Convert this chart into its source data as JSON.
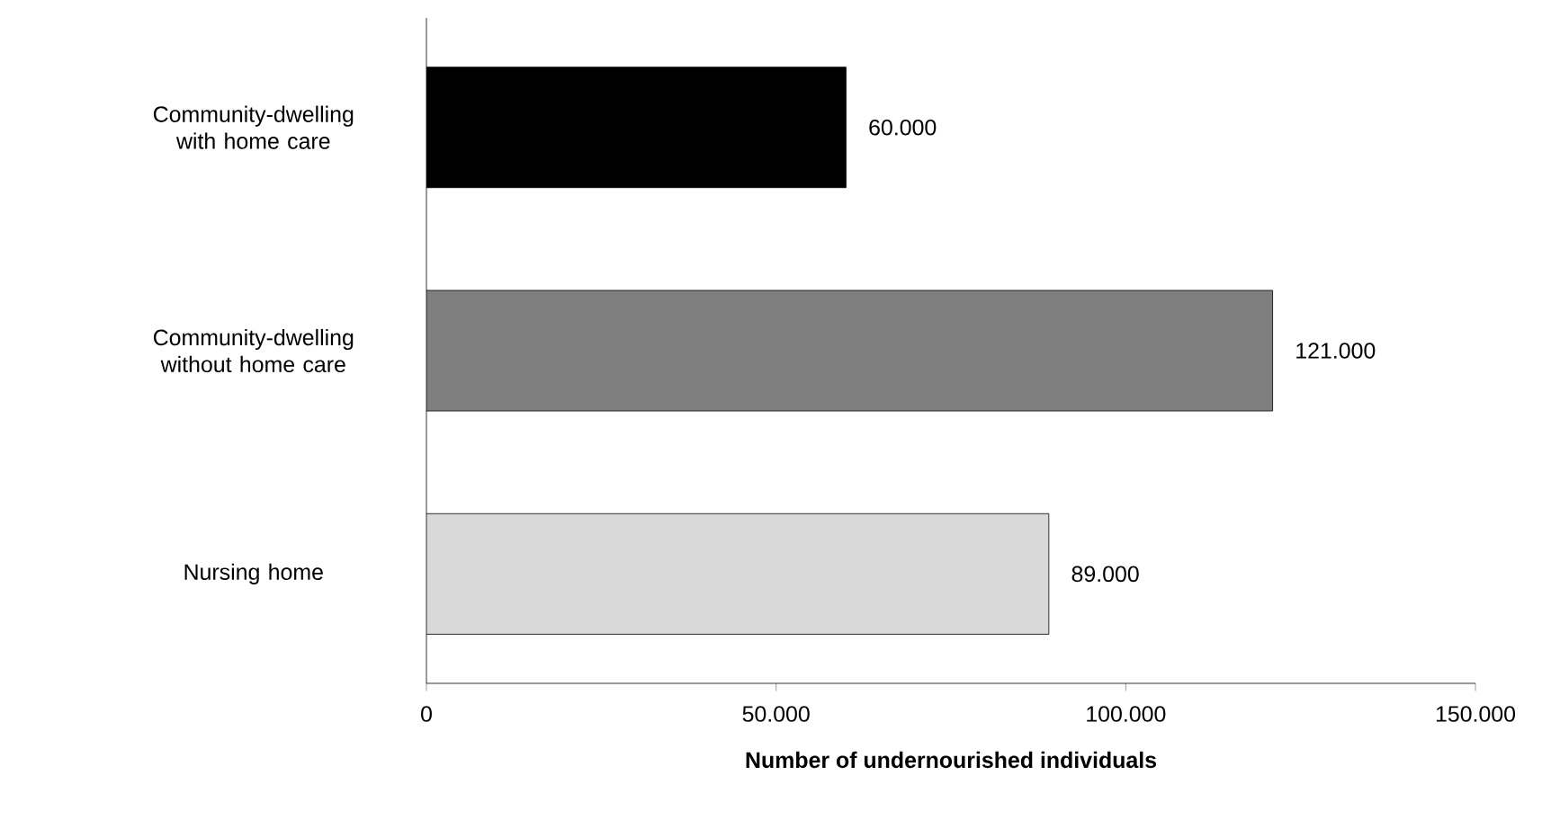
{
  "chart_data": {
    "type": "bar",
    "orientation": "horizontal",
    "xlabel": "Number of undernourished individuals",
    "categories": [
      "Community-dwelling with home care",
      "Community-dwelling without home care",
      "Nursing home"
    ],
    "values": [
      60000,
      121000,
      89000
    ],
    "colors": [
      "#000000",
      "#7f7f7f",
      "#d9d9d9"
    ],
    "value_labels": [
      "60.000",
      "121.000",
      "89.000"
    ],
    "xlim": [
      0,
      150000
    ],
    "xticks": [
      0,
      {
        "value": 50000,
        "label": "50.000"
      },
      {
        "value": 100000,
        "label": "100.000"
      },
      {
        "value": 150000,
        "label": "150.000"
      }
    ]
  }
}
